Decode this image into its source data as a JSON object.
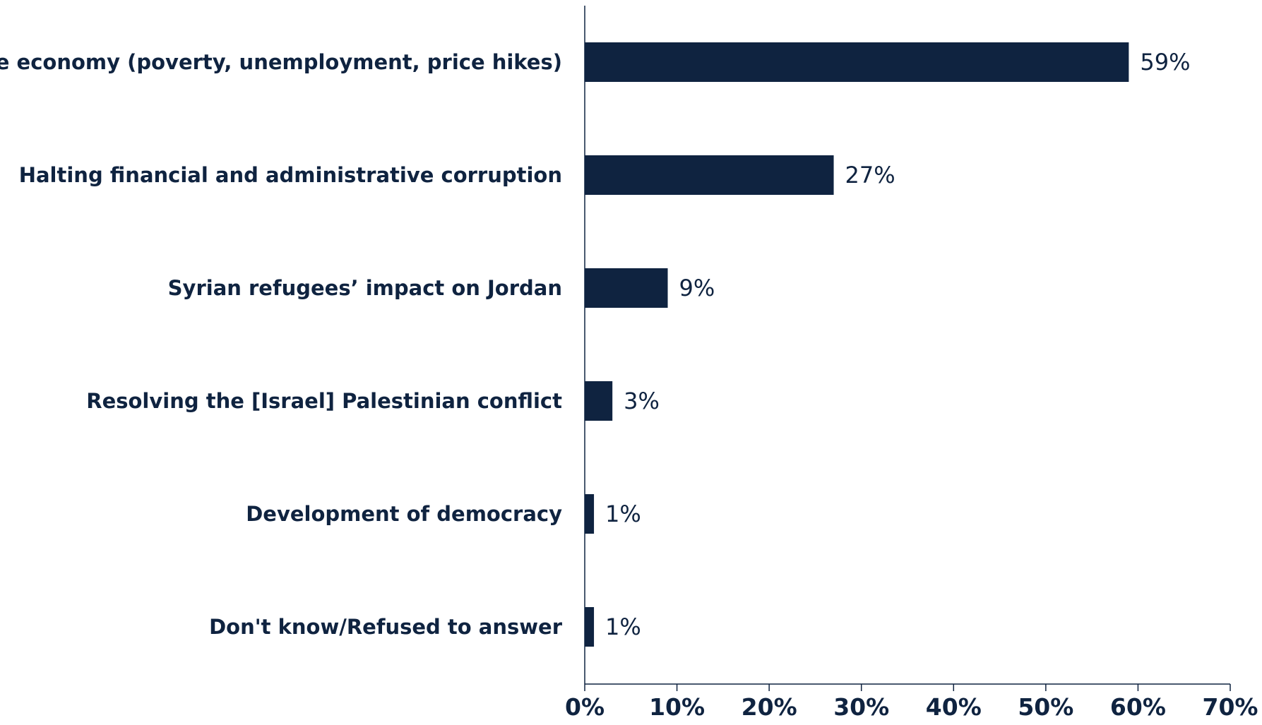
{
  "chart_data": {
    "type": "bar",
    "orientation": "horizontal",
    "title": "",
    "xlabel": "",
    "ylabel": "",
    "categories": [
      "The economy (poverty, unemployment, price hikes)",
      "Halting financial and administrative corruption",
      "Syrian refugees’ impact on Jordan",
      "Resolving the [Israel] Palestinian conflict",
      "Development of democracy",
      "Don't know/Refused to answer"
    ],
    "values": [
      59,
      27,
      9,
      3,
      1,
      1
    ],
    "value_labels": [
      "59%",
      "27%",
      "9%",
      "3%",
      "1%",
      "1%"
    ],
    "xlim": [
      0,
      70
    ],
    "xticks": [
      0,
      10,
      20,
      30,
      40,
      50,
      60,
      70
    ],
    "xtick_labels": [
      "0%",
      "10%",
      "20%",
      "30%",
      "40%",
      "50%",
      "60%",
      "70%"
    ],
    "grid": false,
    "legend": "none",
    "bar_color": "#0f2340"
  }
}
